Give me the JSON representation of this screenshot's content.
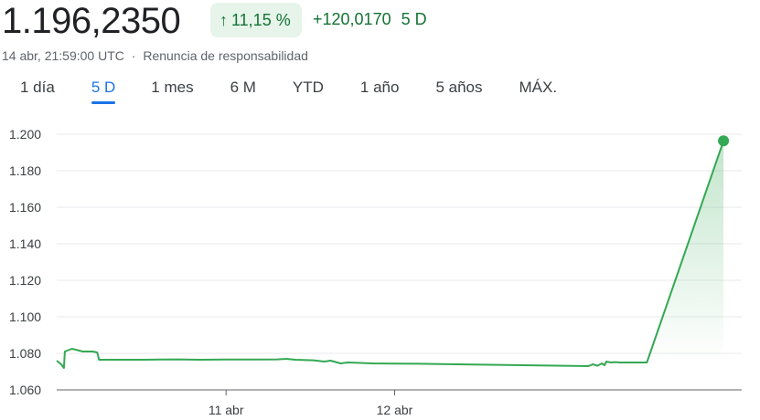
{
  "header": {
    "price": "1.196,2350",
    "pct_change": "11,15 %",
    "abs_change": "+120,0170",
    "period": "5 D",
    "timestamp": "14 abr, 21:59:00 UTC",
    "separator": "·",
    "disclaimer": "Renuncia de responsabilidad"
  },
  "tabs": [
    {
      "label": "1 día",
      "active": false
    },
    {
      "label": "5 D",
      "active": true
    },
    {
      "label": "1 mes",
      "active": false
    },
    {
      "label": "6 M",
      "active": false
    },
    {
      "label": "YTD",
      "active": false
    },
    {
      "label": "1 año",
      "active": false
    },
    {
      "label": "5 años",
      "active": false
    },
    {
      "label": "MÁX.",
      "active": false
    }
  ],
  "colors": {
    "line": "#34a853",
    "positive_text": "#137333",
    "badge_bg": "#e6f4ea",
    "accent": "#1a73e8"
  },
  "chart_data": {
    "type": "line",
    "title": "",
    "xlabel": "",
    "ylabel": "",
    "ylim": [
      1.06,
      1.2
    ],
    "yticks": [
      "1.200",
      "1.180",
      "1.160",
      "1.140",
      "1.120",
      "1.100",
      "1.080",
      "1.060"
    ],
    "ytick_values": [
      1.2,
      1.18,
      1.16,
      1.14,
      1.12,
      1.1,
      1.08,
      1.06
    ],
    "xlim": [
      0,
      1
    ],
    "xticks": [
      {
        "label": "11 abr",
        "x": 0.2523
      },
      {
        "label": "12 abr",
        "x": 0.5034
      }
    ],
    "grid": true,
    "series": [
      {
        "x": [
          0.0,
          0.0067,
          0.0107,
          0.0121,
          0.0228,
          0.0282,
          0.0389,
          0.0537,
          0.0604,
          0.0631,
          0.0805,
          0.0966,
          0.1275,
          0.1543,
          0.1812,
          0.2148,
          0.2483,
          0.2752,
          0.302,
          0.3289,
          0.3423,
          0.3557,
          0.3826,
          0.3987,
          0.4081,
          0.4228,
          0.4336,
          0.4698,
          0.5034,
          0.5369,
          0.7919,
          0.7987,
          0.8054,
          0.8121,
          0.8161,
          0.8188,
          0.8255,
          0.8322,
          0.8389,
          0.8591,
          0.8725,
          0.8792,
          0.9933
        ],
        "y": [
          1.076,
          1.074,
          1.072,
          1.081,
          1.0825,
          1.082,
          1.081,
          1.081,
          1.0805,
          1.0765,
          1.0765,
          1.0765,
          1.0765,
          1.0766,
          1.0767,
          1.0765,
          1.0766,
          1.0766,
          1.0766,
          1.0767,
          1.077,
          1.0765,
          1.0762,
          1.0755,
          1.076,
          1.0745,
          1.075,
          1.0745,
          1.0744,
          1.0743,
          1.073,
          1.074,
          1.0732,
          1.0745,
          1.0735,
          1.0755,
          1.075,
          1.0752,
          1.075,
          1.075,
          1.075,
          1.075,
          1.19635
        ]
      }
    ],
    "last_point_marker": true
  }
}
